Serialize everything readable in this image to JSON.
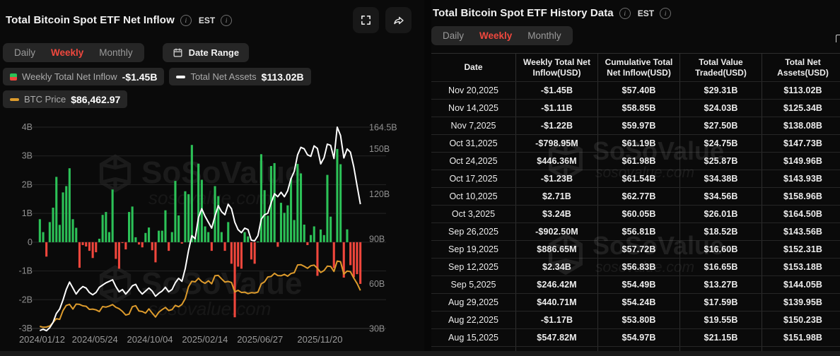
{
  "colors": {
    "green": "#2cc157",
    "red": "#f0463c",
    "orange": "#dd9b2c",
    "white_line": "#ffffff",
    "accent_red": "#f0483e",
    "axis_text": "#8f8f8f",
    "grid": "#242424"
  },
  "icons": {
    "info_glyph": "i",
    "fullscreen": "fullscreen-icon",
    "share": "share-icon",
    "calendar": "calendar-icon"
  },
  "watermark": {
    "brand": "SoSoValue",
    "url": "sosovalue.com"
  },
  "left_panel": {
    "title": "Total Bitcoin Spot ETF Net Inflow",
    "est": "EST",
    "tabs": [
      {
        "label": "Daily",
        "active": false
      },
      {
        "label": "Weekly",
        "active": true
      },
      {
        "label": "Monthly",
        "active": false
      }
    ],
    "date_range_label": "Date Range",
    "legend": [
      {
        "name": "Weekly Total Net Inflow",
        "value": "-$1.45B",
        "icon": "split-green-red-square"
      },
      {
        "name": "Total Net Assets",
        "value": "$113.02B",
        "icon": "white-dash"
      },
      {
        "name": "BTC Price",
        "value": "$86,462.97",
        "icon": "orange-dash"
      }
    ]
  },
  "right_panel": {
    "title": "Total Bitcoin Spot ETF History Data",
    "est": "EST",
    "tabs": [
      {
        "label": "Daily",
        "active": false
      },
      {
        "label": "Weekly",
        "active": true
      },
      {
        "label": "Monthly",
        "active": false
      }
    ],
    "table": {
      "columns": [
        "Date",
        "Weekly Total Net Inflow(USD)",
        "Cumulative Total Net Inflow(USD)",
        "Total Value Traded(USD)",
        "Total Net Assets(USD)"
      ],
      "rows": [
        {
          "date": "Nov 20,2025",
          "inflow": "-$1.45B",
          "sign": "neg",
          "cumulative": "$57.40B",
          "traded": "$29.31B",
          "assets": "$113.02B"
        },
        {
          "date": "Nov 14,2025",
          "inflow": "-$1.11B",
          "sign": "neg",
          "cumulative": "$58.85B",
          "traded": "$24.03B",
          "assets": "$125.34B"
        },
        {
          "date": "Nov 7,2025",
          "inflow": "-$1.22B",
          "sign": "neg",
          "cumulative": "$59.97B",
          "traded": "$27.50B",
          "assets": "$138.08B"
        },
        {
          "date": "Oct 31,2025",
          "inflow": "-$798.95M",
          "sign": "neg",
          "cumulative": "$61.19B",
          "traded": "$24.75B",
          "assets": "$147.73B"
        },
        {
          "date": "Oct 24,2025",
          "inflow": "$446.36M",
          "sign": "pos",
          "cumulative": "$61.98B",
          "traded": "$25.87B",
          "assets": "$149.96B"
        },
        {
          "date": "Oct 17,2025",
          "inflow": "-$1.23B",
          "sign": "neg",
          "cumulative": "$61.54B",
          "traded": "$34.38B",
          "assets": "$143.93B"
        },
        {
          "date": "Oct 10,2025",
          "inflow": "$2.71B",
          "sign": "pos",
          "cumulative": "$62.77B",
          "traded": "$34.56B",
          "assets": "$158.96B"
        },
        {
          "date": "Oct 3,2025",
          "inflow": "$3.24B",
          "sign": "pos",
          "cumulative": "$60.05B",
          "traded": "$26.01B",
          "assets": "$164.50B"
        },
        {
          "date": "Sep 26,2025",
          "inflow": "-$902.50M",
          "sign": "neg",
          "cumulative": "$56.81B",
          "traded": "$18.52B",
          "assets": "$143.56B"
        },
        {
          "date": "Sep 19,2025",
          "inflow": "$886.65M",
          "sign": "pos",
          "cumulative": "$57.72B",
          "traded": "$16.60B",
          "assets": "$152.31B"
        },
        {
          "date": "Sep 12,2025",
          "inflow": "$2.34B",
          "sign": "pos",
          "cumulative": "$56.83B",
          "traded": "$16.65B",
          "assets": "$153.18B"
        },
        {
          "date": "Sep 5,2025",
          "inflow": "$246.42M",
          "sign": "pos",
          "cumulative": "$54.49B",
          "traded": "$13.27B",
          "assets": "$144.05B"
        },
        {
          "date": "Aug 29,2025",
          "inflow": "$440.71M",
          "sign": "pos",
          "cumulative": "$54.24B",
          "traded": "$17.59B",
          "assets": "$139.95B"
        },
        {
          "date": "Aug 22,2025",
          "inflow": "-$1.17B",
          "sign": "neg",
          "cumulative": "$53.80B",
          "traded": "$19.55B",
          "assets": "$150.23B"
        },
        {
          "date": "Aug 15,2025",
          "inflow": "$547.82M",
          "sign": "pos",
          "cumulative": "$54.97B",
          "traded": "$21.15B",
          "assets": "$151.98B"
        }
      ]
    }
  },
  "chart_data": {
    "type": "bar",
    "subtype": "bar+line combo, weekly",
    "title": "Total Bitcoin Spot ETF Net Inflow (Weekly)",
    "x_start": "2024/01/12",
    "x_end": "2025/11/20",
    "x_interval": "weekly",
    "x_tick_labels": [
      "2024/01/12",
      "2024/05/24",
      "2024/10/04",
      "2025/02/14",
      "2025/06/27",
      "2025/11/20"
    ],
    "left_axis": {
      "unit": "USD billions",
      "range": [
        -3,
        4
      ],
      "ticks": [
        {
          "v": 4,
          "label": "4B"
        },
        {
          "v": 3,
          "label": "3B"
        },
        {
          "v": 2,
          "label": "2B"
        },
        {
          "v": 1,
          "label": "1B"
        },
        {
          "v": 0,
          "label": "0"
        },
        {
          "v": -1,
          "label": "-1B"
        },
        {
          "v": -2,
          "label": "-2B"
        },
        {
          "v": -3,
          "label": "-3B"
        }
      ]
    },
    "right_axis": {
      "unit": "USD billions",
      "range": [
        30,
        164.5
      ],
      "ticks": [
        {
          "v": 164.5,
          "label": "164.5B"
        },
        {
          "v": 150,
          "label": "150B"
        },
        {
          "v": 120,
          "label": "120B"
        },
        {
          "v": 90,
          "label": "90B"
        },
        {
          "v": 60,
          "label": "60B"
        },
        {
          "v": 30,
          "label": "30B"
        }
      ]
    },
    "btc_price_axis_anchor": {
      "price1": 42000,
      "left_pos1": -2.95,
      "price2": 126000,
      "left_pos2": -0.55
    },
    "grid": "horizontal lines at left-axis ticks",
    "legend_position": "top-left chips",
    "series": [
      {
        "name": "Weekly Total Net Inflow",
        "type": "bar",
        "axis": "left",
        "unit": "USD B",
        "values": [
          0.8,
          0.35,
          -0.5,
          0.7,
          1.2,
          2.27,
          0.6,
          1.73,
          1.95,
          2.57,
          0.8,
          0.5,
          -0.89,
          -0.1,
          -0.15,
          -0.3,
          -0.55,
          -0.35,
          0.12,
          0.95,
          1.05,
          0.35,
          1.83,
          -0.58,
          -0.92,
          -0.03,
          -0.25,
          1.05,
          1.24,
          0.17,
          -0.08,
          -0.18,
          0.32,
          0.51,
          -0.28,
          -0.7,
          0.4,
          0.4,
          1.11,
          -0.3,
          0.35,
          2.13,
          0.93,
          -0.05,
          1.77,
          1.67,
          3.38,
          0.14,
          2.73,
          2.17,
          0.55,
          0.35,
          -0.3,
          1.95,
          1.6,
          0.35,
          -0.3,
          0.7,
          -0.75,
          -2.61,
          -0.85,
          -0.92,
          0.35,
          0.2,
          -0.6,
          -0.75,
          0.02,
          3.06,
          1.81,
          0.92,
          2.65,
          2.75,
          -0.16,
          1.37,
          1.02,
          1.28,
          2.22,
          0.77,
          2.72,
          2.39,
          0.61,
          -0.1,
          0.25,
          0.548,
          -1.17,
          0.441,
          0.246,
          2.34,
          0.887,
          -0.9025,
          3.24,
          2.71,
          -1.23,
          0.446,
          -0.799,
          -1.22,
          -1.11,
          -1.45
        ]
      },
      {
        "name": "Total Net Assets",
        "type": "line",
        "axis": "right",
        "unit": "USD B",
        "values": [
          28.6,
          29.5,
          28.5,
          30.5,
          34,
          40,
          43,
          49,
          56,
          61,
          57,
          53,
          56,
          58,
          57,
          54,
          52.5,
          54,
          57.5,
          59,
          60.5,
          61.5,
          62.5,
          58,
          54.5,
          56,
          53,
          55.5,
          58.5,
          59.5,
          55.5,
          53,
          55,
          57,
          55,
          51.5,
          53.5,
          55,
          57.5,
          54.5,
          56,
          60.5,
          63.5,
          61.5,
          70,
          82,
          92,
          90,
          104,
          110,
          105,
          101,
          97,
          105,
          112,
          108,
          106,
          113,
          110,
          101,
          96,
          94,
          97,
          96,
          89,
          88.5,
          92,
          103,
          106,
          107,
          114,
          120,
          118,
          121,
          118,
          122,
          130,
          135,
          146,
          151,
          150,
          146,
          145,
          151.98,
          150.23,
          139.95,
          144.05,
          153.18,
          152.31,
          143.56,
          164.5,
          158.96,
          143.93,
          149.96,
          147.73,
          138.08,
          125.34,
          113.02
        ]
      },
      {
        "name": "BTC Price",
        "type": "line",
        "axis": "btc_price",
        "unit": "USD",
        "values": [
          42800,
          41700,
          42000,
          43300,
          47500,
          52100,
          51300,
          62000,
          68300,
          69600,
          63800,
          69900,
          69600,
          67800,
          67200,
          63500,
          63800,
          62900,
          60800,
          66900,
          66200,
          67500,
          69300,
          66000,
          64200,
          61000,
          56600,
          57700,
          66700,
          67900,
          61500,
          60900,
          58900,
          64100,
          59100,
          54200,
          60000,
          63200,
          65800,
          62100,
          63200,
          68400,
          66600,
          69500,
          76500,
          91000,
          97700,
          97000,
          101400,
          97300,
          95200,
          98300,
          94700,
          104400,
          104800,
          100600,
          96600,
          97500,
          96200,
          84700,
          86700,
          84000,
          84400,
          82600,
          83800,
          83400,
          84500,
          94700,
          96900,
          102900,
          103500,
          107300,
          104600,
          104400,
          106100,
          103900,
          107100,
          108200,
          117500,
          117900,
          115900,
          113500,
          116600,
          117400,
          113500,
          108400,
          110700,
          116100,
          115700,
          109600,
          122300,
          121500,
          106400,
          110100,
          109400,
          101600,
          95000,
          86462.97
        ]
      }
    ]
  }
}
